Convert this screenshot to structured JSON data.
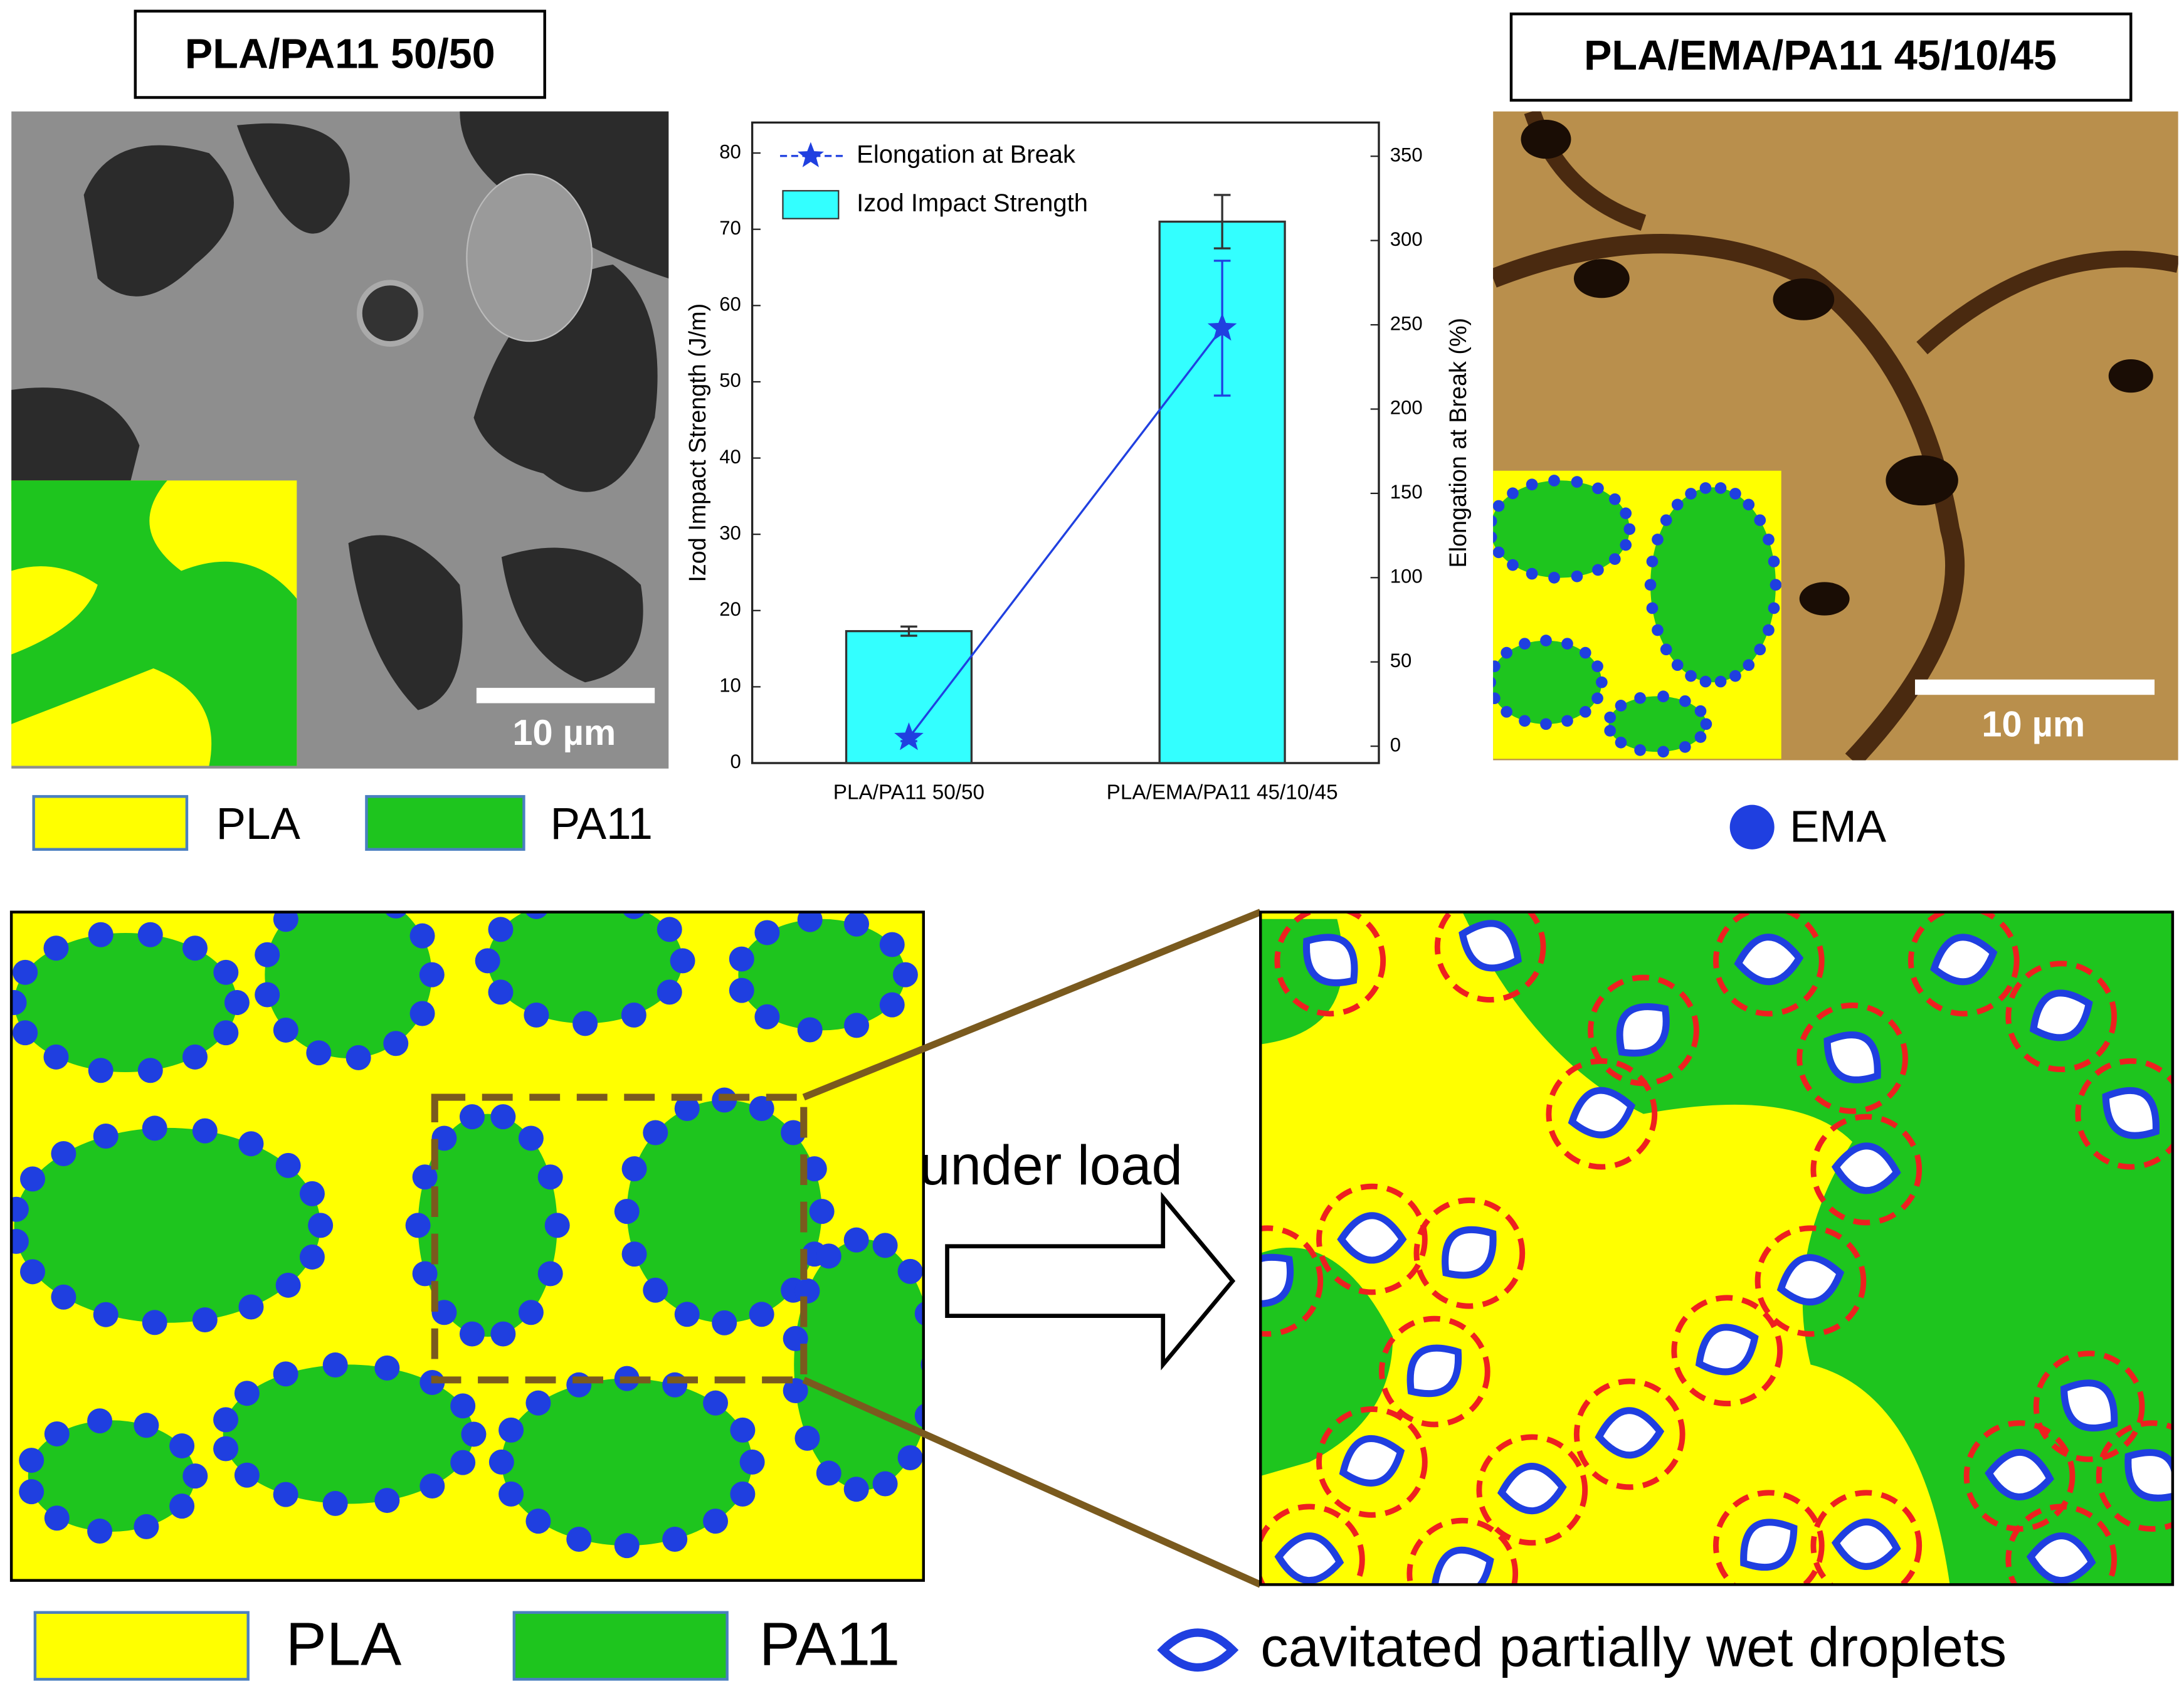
{
  "figure": {
    "left_title": "PLA/PA11 50/50",
    "right_title": "PLA/EMA/PA11 45/10/45",
    "scale_bar_left": "10 µm",
    "scale_bar_right": "10 µm",
    "legend_top": [
      "PLA",
      "PA11"
    ],
    "legend_ema": "EMA",
    "arrow_label": "under load",
    "legend_bottom": [
      "PLA",
      "PA11"
    ],
    "droplet_legend": "cavitated partially wet droplets"
  },
  "chart_data": {
    "type": "bar",
    "categories": [
      "PLA/PA11 50/50",
      "PLA/EMA/PA11 45/10/45"
    ],
    "series": [
      {
        "name": "Elongation at Break",
        "type": "line",
        "marker": "star",
        "color": "#2040e0",
        "axis": "y2",
        "values": [
          5,
          248
        ],
        "errors": [
          2,
          40
        ]
      },
      {
        "name": "Izod Impact Strength",
        "type": "bar",
        "color": "#33ffff",
        "values": [
          17.3,
          71
        ],
        "errors": [
          0.6,
          3.5
        ]
      }
    ],
    "y_label": "Izod Impact Strength (J/m)",
    "y2_label": "Elongation at Break (%)",
    "ylim": [
      0,
      84
    ],
    "yticks": [
      0,
      10,
      20,
      30,
      40,
      50,
      60,
      70,
      80
    ],
    "y2lim": [
      -10,
      370
    ],
    "y2ticks": [
      0,
      50,
      100,
      150,
      200,
      250,
      300,
      350
    ],
    "legend": "top-left"
  }
}
